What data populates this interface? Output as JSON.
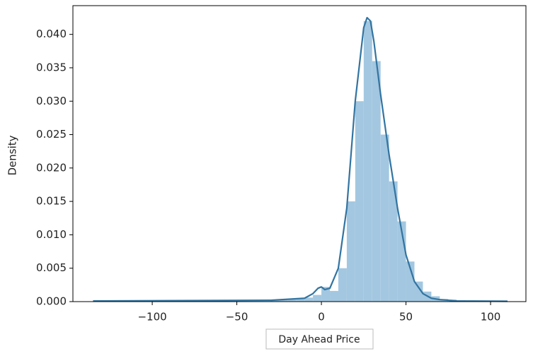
{
  "chart_data": {
    "type": "histogram",
    "x_label": "Day Ahead Price",
    "y_label": "Density",
    "bins": [
      -135,
      -130,
      -125,
      -120,
      -115,
      -110,
      -105,
      -100,
      -95,
      -90,
      -85,
      -80,
      -75,
      -70,
      -65,
      -60,
      -55,
      -50,
      -45,
      -40,
      -35,
      -30,
      -25,
      -20,
      -15,
      -10,
      -5,
      0,
      5,
      10,
      15,
      20,
      25,
      30,
      35,
      40,
      45,
      50,
      55,
      60,
      65,
      70,
      75,
      80,
      85,
      90,
      95,
      100,
      105,
      110
    ],
    "values": [
      0.0001,
      0,
      0,
      0,
      0,
      0,
      0,
      0,
      0,
      0,
      0,
      0,
      0,
      0,
      0,
      0,
      0,
      0,
      0,
      0,
      0,
      0.0003,
      0.0003,
      0.0004,
      0.0004,
      0.0006,
      0.001,
      0.0022,
      0.0016,
      0.005,
      0.015,
      0.03,
      0.042,
      0.036,
      0.025,
      0.018,
      0.012,
      0.006,
      0.003,
      0.0015,
      0.0008,
      0.0004,
      0.0003,
      0.0002,
      0.0001,
      5e-05,
      0.0001,
      0,
      0
    ],
    "color": "#a3c7e0",
    "kde": {
      "color": "#3274a1",
      "x": [
        -135,
        -30,
        -10,
        -5,
        -2,
        0,
        2,
        5,
        10,
        15,
        20,
        25,
        27,
        29,
        31,
        35,
        40,
        45,
        50,
        55,
        60,
        65,
        70,
        80,
        110
      ],
      "y": [
        0.0001,
        0.0002,
        0.0005,
        0.0012,
        0.002,
        0.0022,
        0.0018,
        0.002,
        0.005,
        0.014,
        0.03,
        0.041,
        0.0425,
        0.042,
        0.039,
        0.031,
        0.022,
        0.014,
        0.007,
        0.003,
        0.0012,
        0.0005,
        0.0003,
        0.0001,
        5e-05
      ]
    },
    "xlim": [
      -146.9,
      120.9
    ],
    "ylim": [
      0,
      0.0443
    ],
    "xticks": [
      {
        "value": -100,
        "label": "−100"
      },
      {
        "value": -50,
        "label": "−50"
      },
      0,
      50,
      100
    ],
    "yticks": [
      {
        "value": 0,
        "label": "0.000"
      },
      {
        "value": 0.005,
        "label": "0.005"
      },
      {
        "value": 0.01,
        "label": "0.010"
      },
      {
        "value": 0.015,
        "label": "0.015"
      },
      {
        "value": 0.02,
        "label": "0.020"
      },
      {
        "value": 0.025,
        "label": "0.025"
      },
      {
        "value": 0.03,
        "label": "0.030"
      },
      {
        "value": 0.035,
        "label": "0.035"
      },
      {
        "value": 0.04,
        "label": "0.040"
      }
    ]
  }
}
